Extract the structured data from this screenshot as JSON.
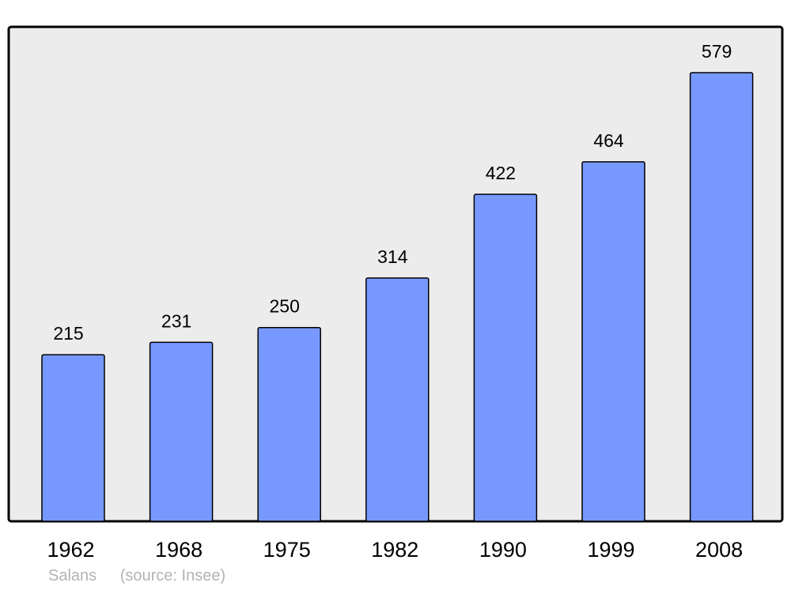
{
  "chart_data": {
    "type": "bar",
    "categories": [
      "1962",
      "1968",
      "1975",
      "1982",
      "1990",
      "1999",
      "2008"
    ],
    "values": [
      215,
      231,
      250,
      314,
      422,
      464,
      579
    ],
    "title": "",
    "xlabel": "",
    "ylabel": "",
    "ylim": [
      0,
      579
    ],
    "grid": false,
    "data_labels": true,
    "colors": {
      "bar": "#7799ff",
      "background": "#ececec",
      "border": "#000000"
    }
  },
  "footer": {
    "place": "Salans",
    "source": "(source: Insee)"
  }
}
